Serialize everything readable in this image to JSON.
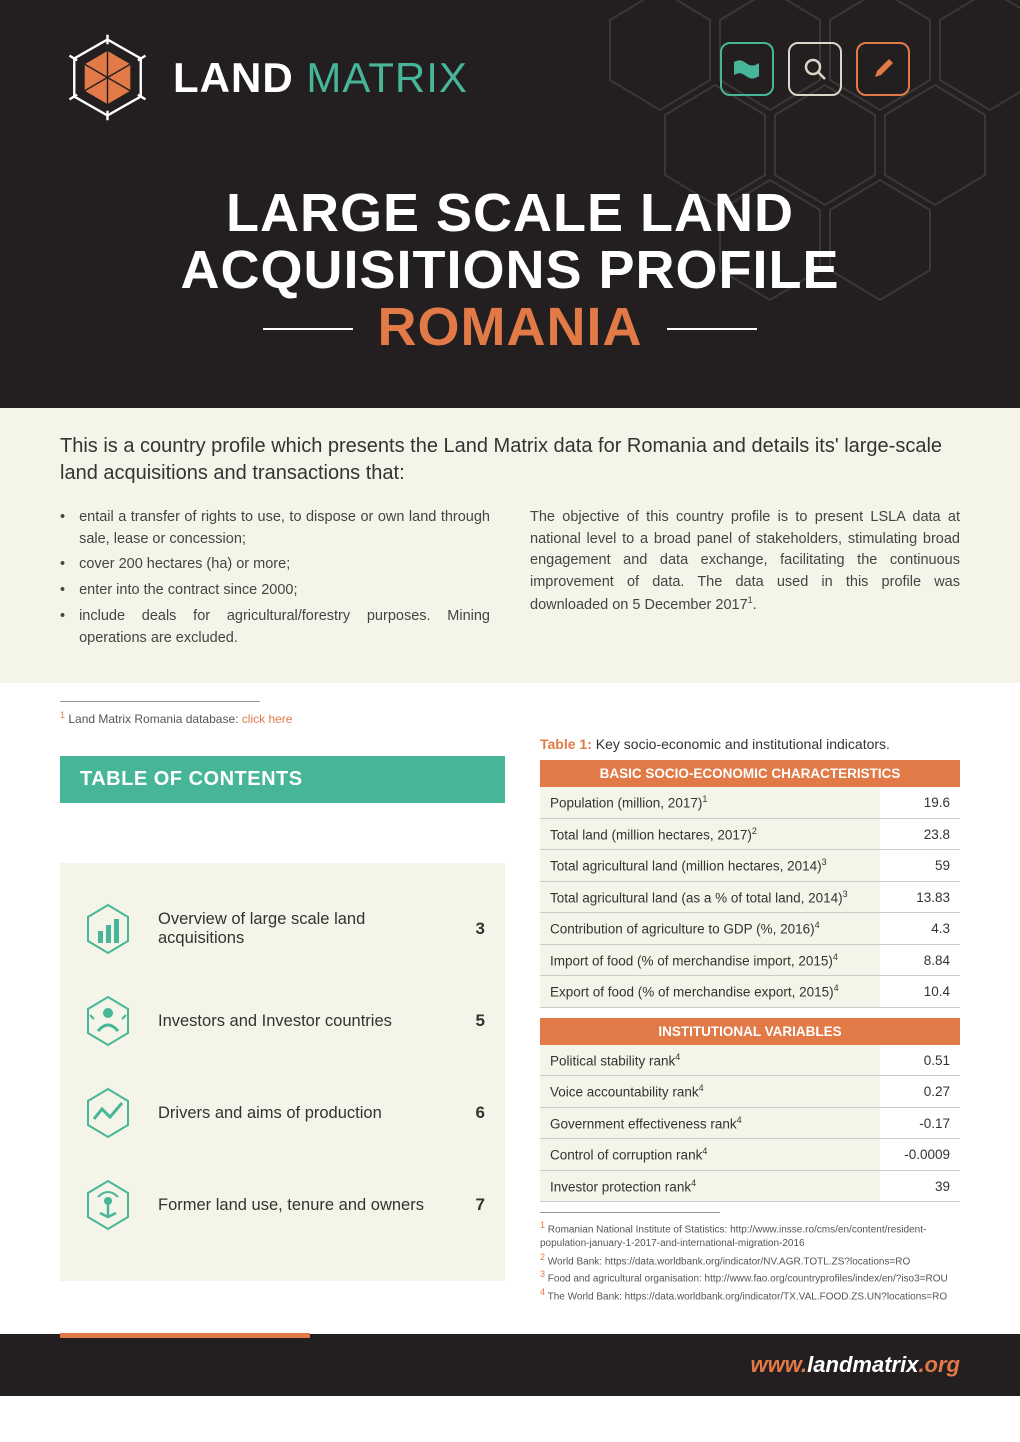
{
  "brand": {
    "part1": "LAND ",
    "part2": "MATRIX"
  },
  "title": {
    "line1": "LARGE SCALE LAND",
    "line2": "ACQUISITIONS PROFILE",
    "line3": "ROMANIA"
  },
  "intro_lead": "This is a country profile which presents the Land Matrix data for Romania and details its' large-scale land acquisitions and transactions that:",
  "bullets": [
    "entail a transfer of rights to use, to dispose or own land through sale, lease or concession;",
    "cover 200 hectares (ha) or more;",
    "enter into the contract since 2000;",
    "include deals for agricultural/forestry purposes. Mining operations are excluded."
  ],
  "objective": "The objective of this country profile is to present LSLA data at national level to a broad panel of stakeholders, stimulating broad engagement and data exchange, facilitating the continuous improvement of data.  The data used in this profile was downloaded on 5 December 2017",
  "obj_sup": "1",
  "footnote1": {
    "sup": "1",
    "text": " Land Matrix Romania database: ",
    "link": "click here"
  },
  "toc_title": "TABLE OF CONTENTS",
  "toc_items": [
    {
      "label": "Overview of large scale land acquisitions",
      "page": "3"
    },
    {
      "label": "Investors and Investor countries",
      "page": "5"
    },
    {
      "label": "Drivers and aims of production",
      "page": "6"
    },
    {
      "label": "Former land use, tenure and owners",
      "page": "7"
    }
  ],
  "table_caption_b": "Table 1:",
  "table_caption": " Key socio-economic and institutional indicators.",
  "section1": "BASIC SOCIO-ECONOMIC CHARACTERISTICS",
  "rows1": [
    {
      "k": "Population (million, 2017)",
      "s": "1",
      "v": "19.6"
    },
    {
      "k": "Total land (million hectares, 2017)",
      "s": "2",
      "v": "23.8"
    },
    {
      "k": "Total agricultural land (million hectares, 2014)",
      "s": "3",
      "v": "59"
    },
    {
      "k": "Total agricultural land (as a % of total land, 2014)",
      "s": "3",
      "v": "13.83"
    },
    {
      "k": "Contribution of agriculture to GDP (%, 2016)",
      "s": "4",
      "v": "4.3"
    },
    {
      "k": "Import of food (% of merchandise import, 2015)",
      "s": "4",
      "v": "8.84"
    },
    {
      "k": "Export of food (% of merchandise export, 2015)",
      "s": "4",
      "v": "10.4"
    }
  ],
  "section2": "INSTITUTIONAL VARIABLES",
  "rows2": [
    {
      "k": "Political stability rank",
      "s": "4",
      "v": "0.51"
    },
    {
      "k": "Voice accountability rank",
      "s": "4",
      "v": "0.27"
    },
    {
      "k": "Government effectiveness rank",
      "s": "4",
      "v": "-0.17"
    },
    {
      "k": "Control of corruption rank",
      "s": "4",
      "v": "-0.0009"
    },
    {
      "k": "Investor protection rank",
      "s": "4",
      "v": "39"
    }
  ],
  "sources": [
    {
      "s": "1",
      "t": "Romanian National Institute of Statistics: http://www.insse.ro/cms/en/content/resident-population-january-1-2017-and-international-migration-2016"
    },
    {
      "s": "2",
      "t": "World Bank: https://data.worldbank.org/indicator/NV.AGR.TOTL.ZS?locations=RO"
    },
    {
      "s": "3",
      "t": "Food and agricultural organisation: http://www.fao.org/countryprofiles/index/en/?iso3=ROU"
    },
    {
      "s": "4",
      "t": "The World Bank: https://data.worldbank.org/indicator/TX.VAL.FOOD.ZS.UN?locations=RO"
    }
  ],
  "footer": {
    "pre": "www.",
    "mid": "landmatrix",
    "post": ".org"
  },
  "colors": {
    "header_bg": "#231f20",
    "accent_green": "#47b598",
    "accent_orange": "#e17a47",
    "cream": "#f4f5e8",
    "offwhite": "#dcd6c8"
  }
}
